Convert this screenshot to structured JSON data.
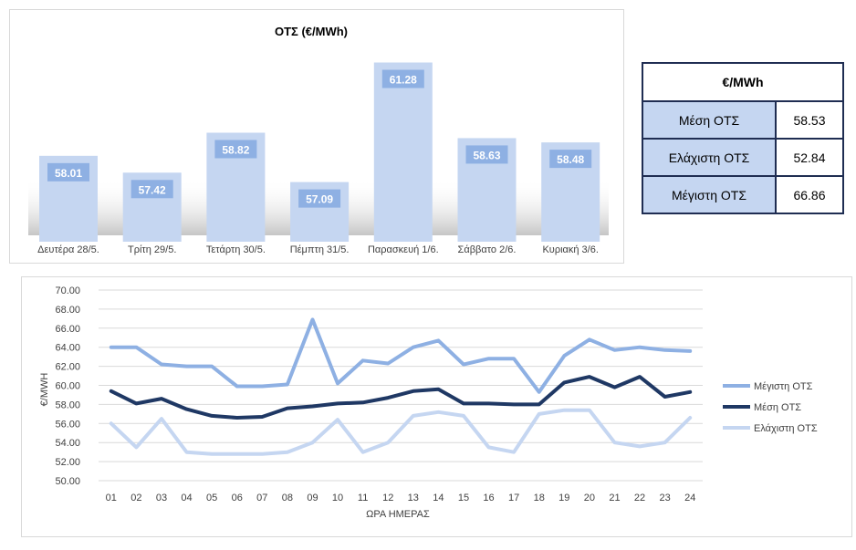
{
  "chart_data": [
    {
      "type": "bar",
      "title": "ΟΤΣ (€/MWh)",
      "categories": [
        "Δευτέρα 28/5.",
        "Τρίτη 29/5.",
        "Τετάρτη 30/5.",
        "Πέμπτη 31/5.",
        "Παρασκευή 1/6.",
        "Σάββατο 2/6.",
        "Κυριακή 3/6."
      ],
      "values": [
        58.01,
        57.42,
        58.82,
        57.09,
        61.28,
        58.63,
        58.48
      ],
      "value_labels": [
        "58.01",
        "57.42",
        "58.82",
        "57.09",
        "61.28",
        "58.63",
        "58.48"
      ],
      "ylim": [
        55,
        62
      ],
      "grid": false,
      "colors": {
        "bar": "#c5d6f1",
        "label_bg": "#8eb0e3",
        "label_text": "#ffffff"
      }
    },
    {
      "type": "line",
      "xlabel": "ΩΡΑ ΗΜΕΡΑΣ",
      "ylabel": "€/MWH",
      "x": [
        "01",
        "02",
        "03",
        "04",
        "05",
        "06",
        "07",
        "08",
        "09",
        "10",
        "11",
        "12",
        "13",
        "14",
        "15",
        "16",
        "17",
        "18",
        "19",
        "20",
        "21",
        "22",
        "23",
        "24"
      ],
      "y_ticks": [
        "50.00",
        "52.00",
        "54.00",
        "56.00",
        "58.00",
        "60.00",
        "62.00",
        "64.00",
        "66.00",
        "68.00",
        "70.00"
      ],
      "ylim": [
        50,
        70
      ],
      "grid": true,
      "legend": "right",
      "series": [
        {
          "name": "Μέγιστη ΟΤΣ",
          "color": "#8eb0e3",
          "values": [
            64.0,
            64.0,
            62.2,
            62.0,
            62.0,
            59.9,
            59.9,
            60.1,
            66.9,
            60.2,
            62.6,
            62.3,
            64.0,
            64.7,
            62.2,
            62.8,
            62.8,
            59.3,
            63.1,
            64.8,
            63.7,
            64.0,
            63.7,
            63.6
          ]
        },
        {
          "name": "Μέση ΟΤΣ",
          "color": "#1f3864",
          "values": [
            59.4,
            58.1,
            58.6,
            57.5,
            56.8,
            56.6,
            56.7,
            57.6,
            57.8,
            58.1,
            58.2,
            58.7,
            59.4,
            59.6,
            58.1,
            58.1,
            58.0,
            58.0,
            60.3,
            60.9,
            59.8,
            60.9,
            58.8,
            59.3
          ]
        },
        {
          "name": "Ελάχιστη ΟΤΣ",
          "color": "#c5d6f1",
          "values": [
            56.0,
            53.5,
            56.5,
            53.0,
            52.8,
            52.8,
            52.8,
            53.0,
            54.0,
            56.4,
            53.0,
            54.0,
            56.8,
            57.2,
            56.8,
            53.5,
            53.0,
            57.0,
            57.4,
            57.4,
            54.0,
            53.6,
            54.0,
            56.6
          ]
        }
      ]
    }
  ],
  "stats": {
    "header": "€/MWh",
    "rows": [
      {
        "label": "Μέση ΟΤΣ",
        "value": "58.53"
      },
      {
        "label": "Ελάχιστη ΟΤΣ",
        "value": "52.84"
      },
      {
        "label": "Μέγιστη ΟΤΣ",
        "value": "66.86"
      }
    ]
  }
}
